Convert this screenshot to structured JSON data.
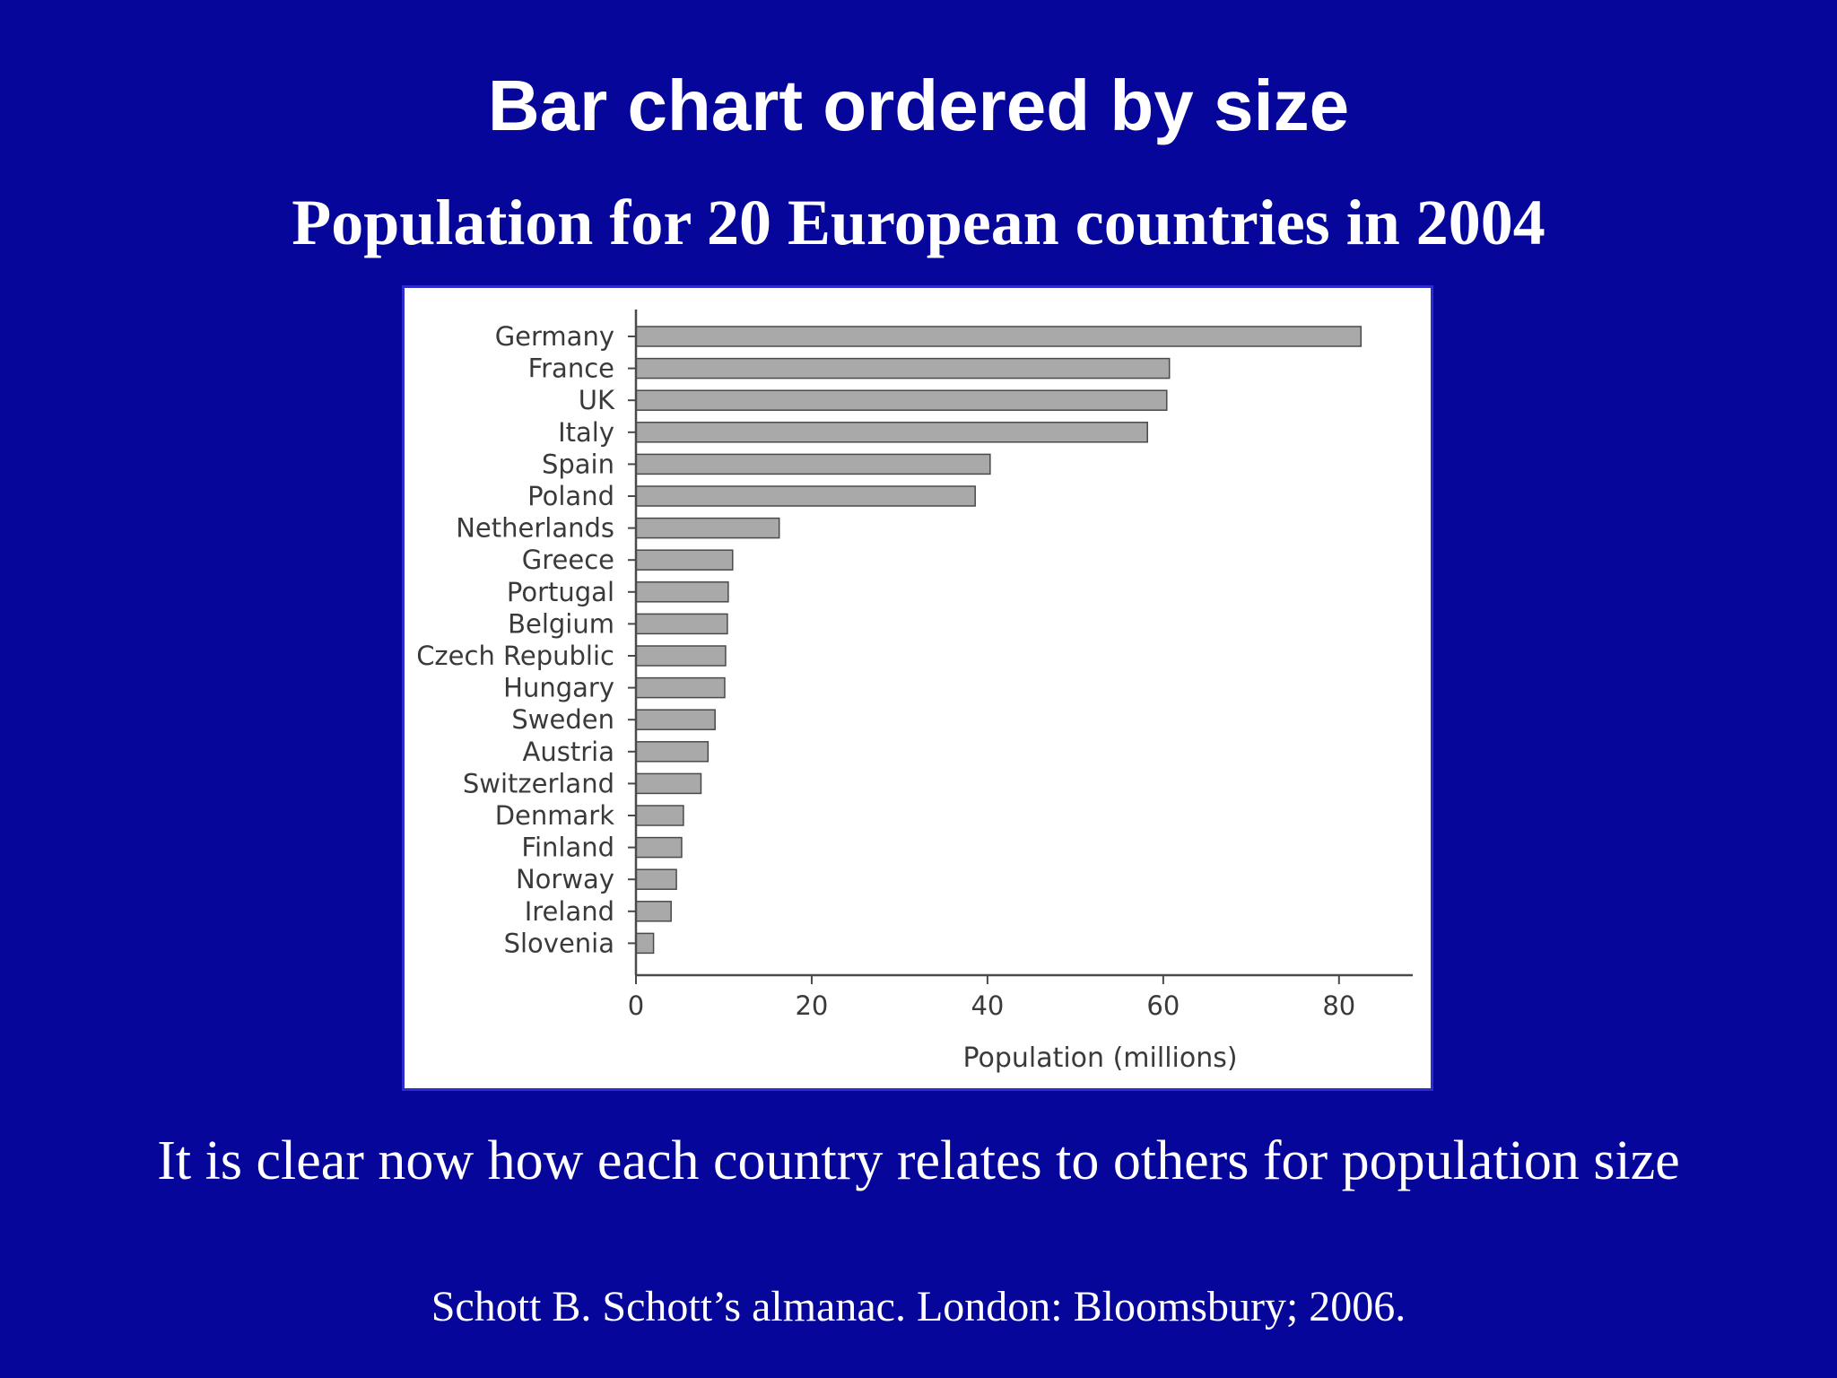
{
  "slide": {
    "title": "Bar chart ordered by size",
    "subtitle": "Population for 20 European countries in 2004",
    "caption": "It is clear now how each country relates to others for population size",
    "citation": "Schott B. Schott’s almanac. London: Bloomsbury; 2006."
  },
  "chart_data": {
    "type": "bar",
    "orientation": "horizontal",
    "categories": [
      "Germany",
      "France",
      "UK",
      "Italy",
      "Spain",
      "Poland",
      "Netherlands",
      "Greece",
      "Portugal",
      "Belgium",
      "Czech Republic",
      "Hungary",
      "Sweden",
      "Austria",
      "Switzerland",
      "Denmark",
      "Finland",
      "Norway",
      "Ireland",
      "Slovenia"
    ],
    "values": [
      82.5,
      60.7,
      60.4,
      58.2,
      40.3,
      38.6,
      16.3,
      11.0,
      10.5,
      10.4,
      10.2,
      10.1,
      9.0,
      8.2,
      7.4,
      5.4,
      5.2,
      4.6,
      4.0,
      2.0
    ],
    "xlabel": "Population (millions)",
    "ylabel": "",
    "xlim": [
      0,
      84
    ],
    "xticks": [
      0,
      20,
      40,
      60,
      80
    ],
    "grid": false,
    "bar_color": "#a9a9a9",
    "bar_edge_color": "#4a4a4a"
  }
}
